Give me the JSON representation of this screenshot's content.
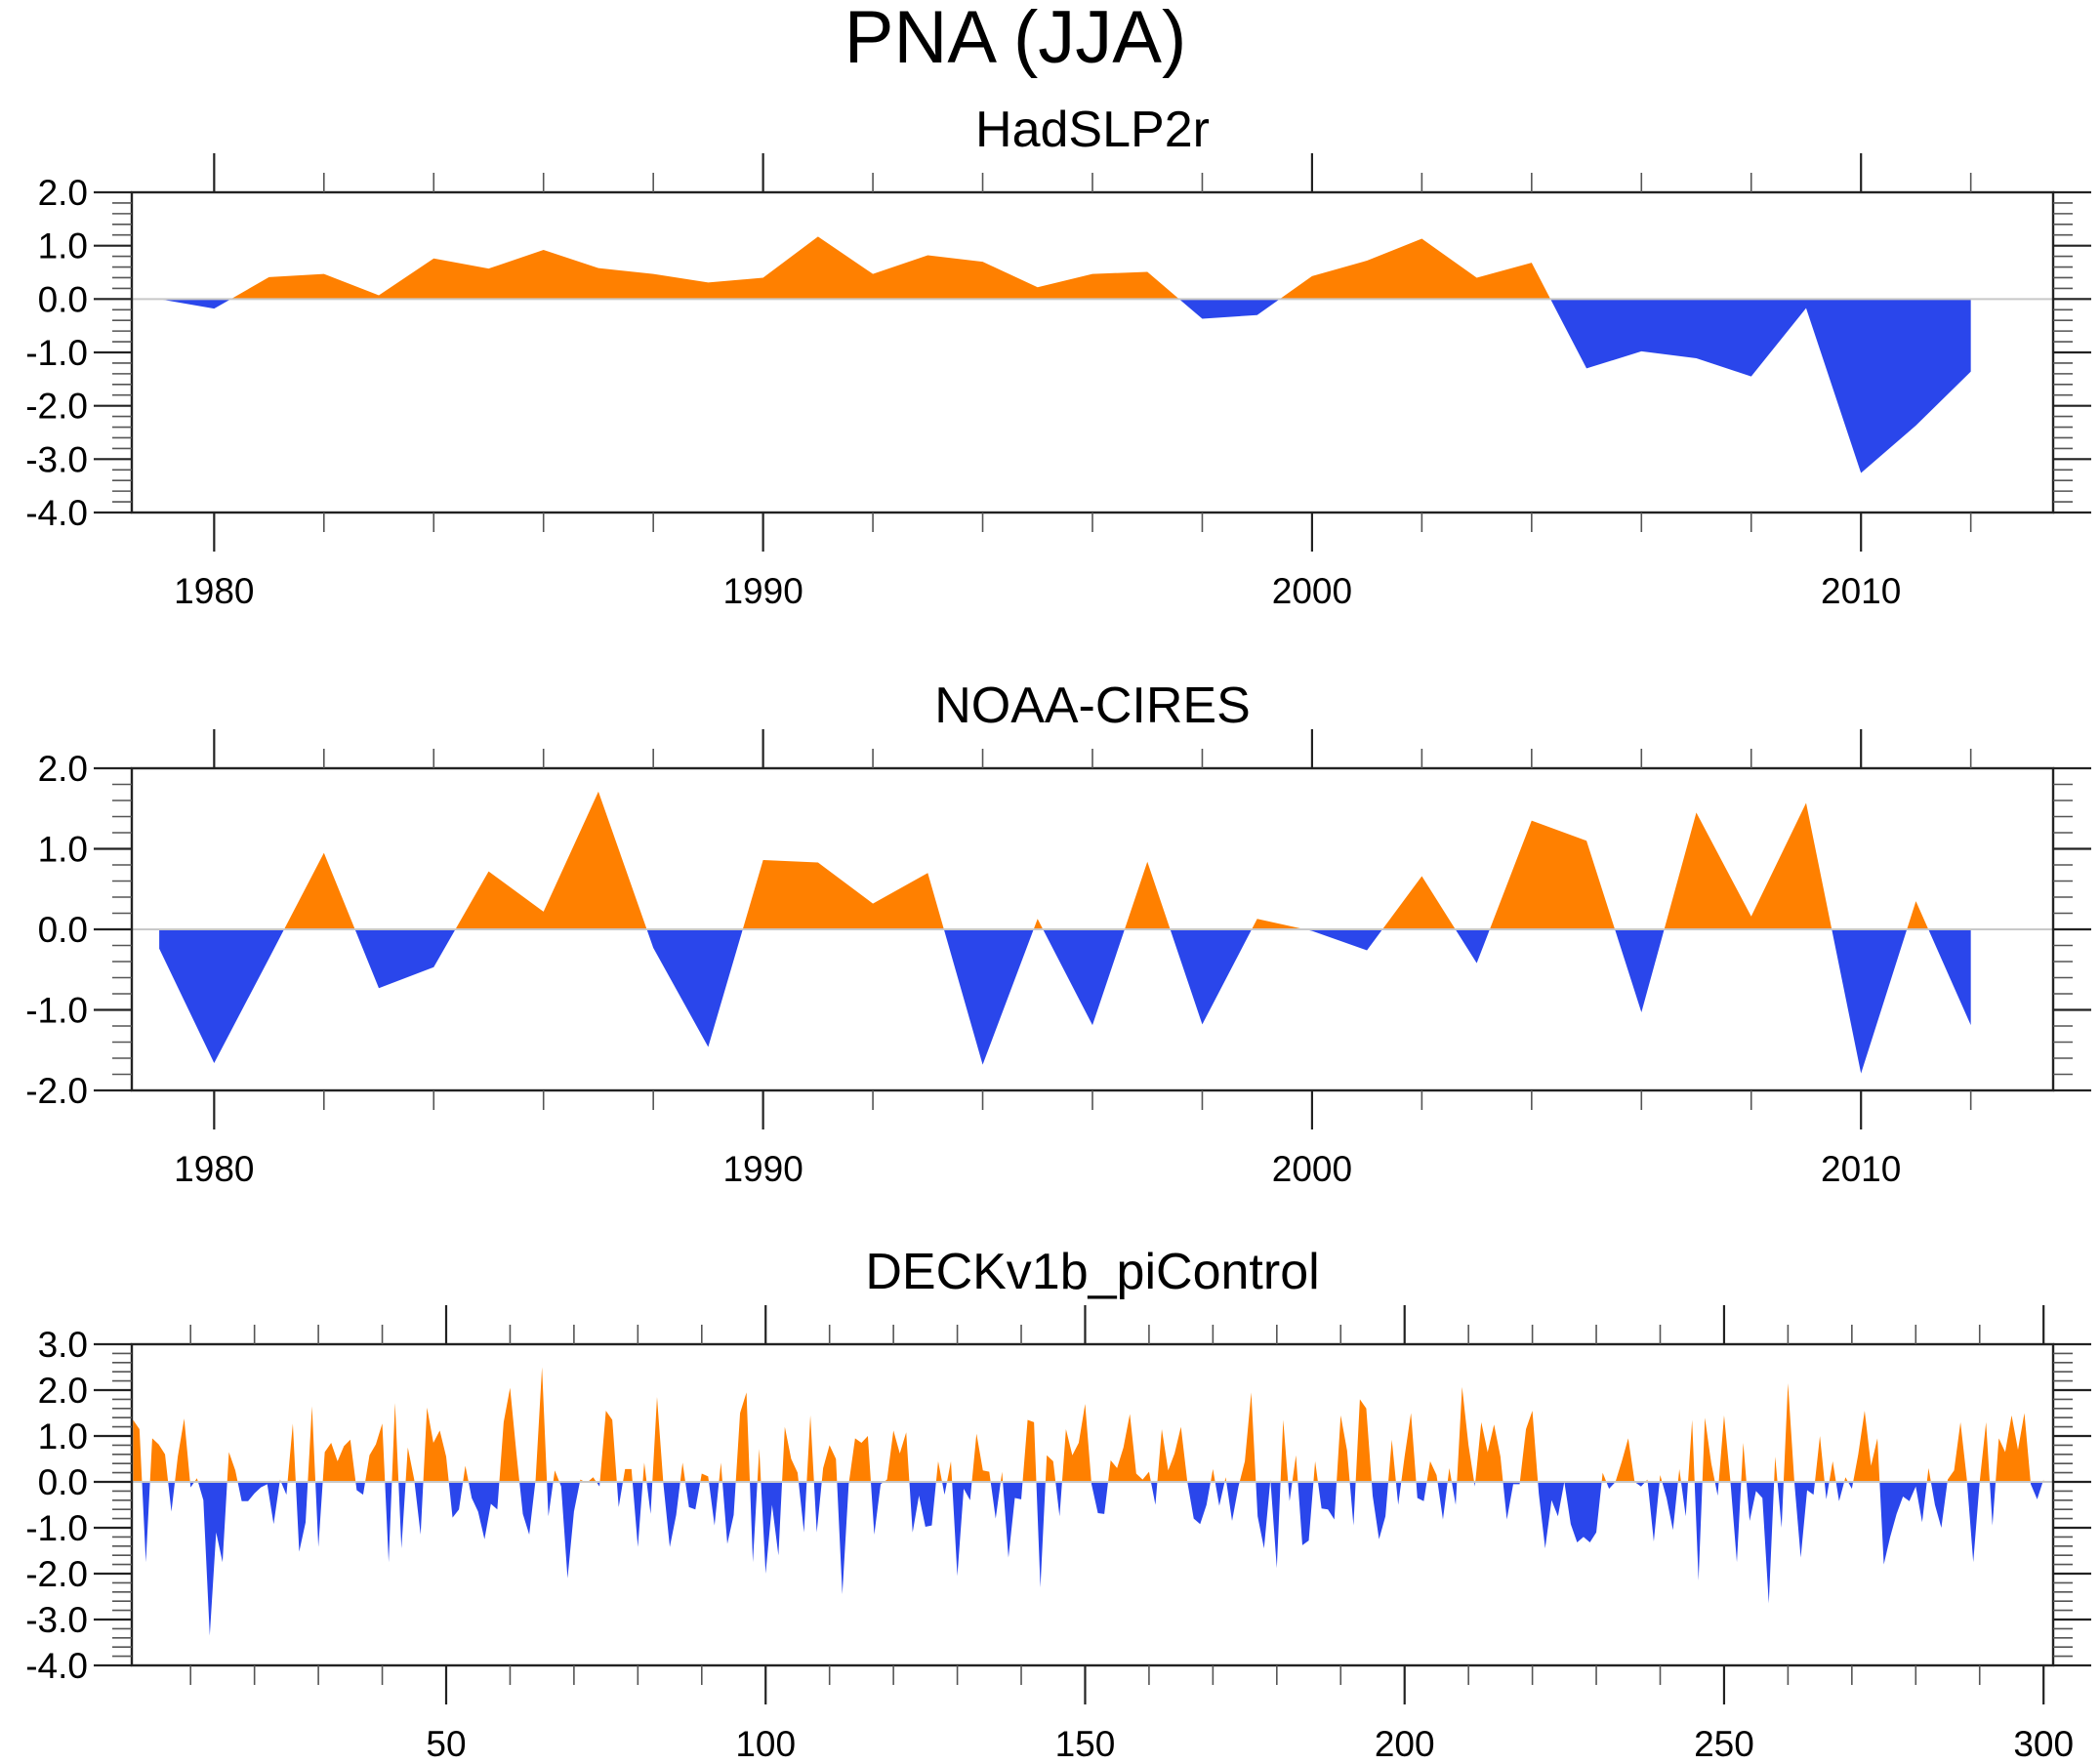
{
  "chart_data": {
    "title": "PNA (JJA)",
    "panels": [
      {
        "type": "area",
        "title": "HadSLP2r",
        "xlabel": "",
        "ylabel": "",
        "xlim": [
          1978.5,
          2013.5
        ],
        "ylim": [
          -4.0,
          2.0
        ],
        "x_major_ticks": [
          1980,
          1990,
          2000,
          2010
        ],
        "x_minor_step": 2,
        "x_tick_labels": [
          "1980",
          "1990",
          "2000",
          "2010"
        ],
        "y_major_ticks": [
          2.0,
          1.0,
          0.0,
          -1.0,
          -2.0,
          -3.0,
          -4.0
        ],
        "y_tick_labels": [
          "2.0",
          "1.0",
          "0.0",
          "-1.0",
          "-2.0",
          "-3.0",
          "-4.0"
        ],
        "y_minor_step": 0.2,
        "grid": false,
        "positive_color": "#ff8000",
        "negative_color": "#2a46eb",
        "x_start": 1979,
        "x_step": 1,
        "values": [
          0.0,
          -0.18,
          0.41,
          0.47,
          0.07,
          0.76,
          0.57,
          0.92,
          0.58,
          0.47,
          0.31,
          0.4,
          1.17,
          0.47,
          0.82,
          0.7,
          0.22,
          0.47,
          0.51,
          -0.37,
          -0.3,
          0.43,
          0.72,
          1.13,
          0.4,
          0.68,
          -1.3,
          -0.98,
          -1.11,
          -1.45,
          -0.17,
          -3.26,
          -2.37,
          -1.36
        ]
      },
      {
        "type": "area",
        "title": "NOAA-CIRES",
        "xlabel": "",
        "ylabel": "",
        "xlim": [
          1978.5,
          2013.5
        ],
        "ylim": [
          -2.0,
          2.0
        ],
        "x_major_ticks": [
          1980,
          1990,
          2000,
          2010
        ],
        "x_minor_step": 2,
        "x_tick_labels": [
          "1980",
          "1990",
          "2000",
          "2010"
        ],
        "y_major_ticks": [
          2.0,
          1.0,
          0.0,
          -1.0,
          -2.0
        ],
        "y_tick_labels": [
          "2.0",
          "1.0",
          "0.0",
          "-1.0",
          "-2.0"
        ],
        "y_minor_step": 0.2,
        "grid": false,
        "positive_color": "#ff8000",
        "negative_color": "#2a46eb",
        "x_start": 1979,
        "x_step": 1,
        "values": [
          -0.24,
          -1.66,
          -0.36,
          0.95,
          -0.73,
          -0.47,
          0.72,
          0.22,
          1.71,
          -0.23,
          -1.46,
          0.86,
          0.83,
          0.32,
          0.7,
          -1.68,
          0.13,
          -1.19,
          0.84,
          -1.18,
          0.13,
          -0.02,
          -0.26,
          0.66,
          -0.42,
          1.35,
          1.1,
          -1.03,
          1.45,
          0.16,
          1.57,
          -1.79,
          0.35,
          -1.19
        ]
      },
      {
        "type": "area",
        "title": "DECKv1b_piControl",
        "xlabel": "",
        "ylabel": "",
        "xlim": [
          0.8,
          301.5
        ],
        "ylim": [
          -4.0,
          3.0
        ],
        "x_major_ticks": [
          50,
          100,
          150,
          200,
          250,
          300
        ],
        "x_minor_step": 10,
        "x_tick_labels": [
          "50",
          "100",
          "150",
          "200",
          "250",
          "300"
        ],
        "y_major_ticks": [
          3.0,
          2.0,
          1.0,
          0.0,
          -1.0,
          -2.0,
          -3.0,
          -4.0
        ],
        "y_tick_labels": [
          "3.0",
          "2.0",
          "1.0",
          "0.0",
          "-1.0",
          "-2.0",
          "-3.0",
          "-4.0"
        ],
        "y_minor_step": 0.2,
        "grid": false,
        "positive_color": "#ff8000",
        "negative_color": "#2a46eb",
        "x_start": 1,
        "x_step": 1,
        "values": [
          1.35,
          1.15,
          -1.75,
          0.95,
          0.82,
          0.6,
          -0.65,
          0.55,
          1.38,
          -0.12,
          0.08,
          -0.4,
          -3.35,
          -1.1,
          -1.75,
          0.65,
          0.25,
          -0.42,
          -0.42,
          -0.25,
          -0.12,
          -0.05,
          -0.92,
          0.05,
          -0.28,
          1.27,
          -1.52,
          -0.88,
          1.65,
          -1.42,
          0.65,
          0.85,
          0.45,
          0.78,
          0.92,
          -0.18,
          -0.28,
          0.58,
          0.82,
          1.27,
          -1.75,
          1.72,
          -1.45,
          0.75,
          0.05,
          -1.15,
          1.62,
          0.85,
          1.12,
          0.55,
          -0.78,
          -0.6,
          0.35,
          -0.35,
          -0.65,
          -1.25,
          -0.48,
          -0.6,
          1.3,
          2.05,
          0.62,
          -0.7,
          -1.15,
          0.05,
          2.5,
          -0.75,
          0.25,
          -0.1,
          -2.1,
          -0.65,
          0.05,
          -0.02,
          0.1,
          -0.1,
          1.55,
          1.35,
          -0.55,
          0.28,
          0.28,
          -1.42,
          0.42,
          -0.7,
          1.85,
          -0.05,
          -1.42,
          -0.72,
          0.42,
          -0.55,
          -0.6,
          0.18,
          0.12,
          -0.95,
          0.42,
          -1.35,
          -0.72,
          1.5,
          1.95,
          -1.75,
          0.72,
          -2.0,
          -0.5,
          -1.6,
          1.2,
          0.5,
          0.2,
          -1.1,
          1.45,
          -1.1,
          0.3,
          0.8,
          0.5,
          -2.45,
          -0.05,
          0.95,
          0.85,
          1.0,
          -1.15,
          -0.05,
          0.05,
          1.12,
          0.62,
          1.08,
          -1.1,
          -0.3,
          -0.98,
          -0.95,
          0.45,
          -0.28,
          0.45,
          -2.05,
          -0.15,
          -0.4,
          1.05,
          0.25,
          0.22,
          -0.8,
          0.22,
          -1.65,
          -0.35,
          -0.38,
          1.35,
          1.3,
          -2.3,
          0.58,
          0.45,
          -0.75,
          1.15,
          0.58,
          0.85,
          1.7,
          -0.05,
          -0.68,
          -0.7,
          0.47,
          0.3,
          0.75,
          1.48,
          0.18,
          0.05,
          0.22,
          -0.5,
          1.15,
          0.25,
          0.62,
          1.2,
          0.0,
          -0.8,
          -0.92,
          -0.5,
          0.28,
          -0.52,
          0.1,
          -0.85,
          -0.1,
          0.45,
          1.95,
          -0.75,
          -1.45,
          0.05,
          -1.88,
          1.35,
          -0.42,
          0.58,
          -1.38,
          -1.28,
          0.45,
          -0.58,
          -0.6,
          -0.82,
          1.45,
          0.68,
          -0.95,
          1.8,
          1.6,
          -0.3,
          -1.25,
          -0.75,
          0.92,
          -0.5,
          0.55,
          1.5,
          -0.35,
          -0.42,
          0.45,
          0.15,
          -0.82,
          0.3,
          -0.5,
          2.07,
          0.8,
          -0.1,
          1.3,
          0.65,
          1.25,
          0.55,
          -0.82,
          -0.05,
          -0.05,
          1.15,
          1.55,
          -0.25,
          -1.45,
          -0.4,
          -0.75,
          0.0,
          -0.92,
          -1.32,
          -1.2,
          -1.32,
          -1.1,
          0.2,
          -0.15,
          0.0,
          0.45,
          0.95,
          0.0,
          -0.1,
          0.05,
          -1.3,
          0.15,
          -0.35,
          -1.05,
          0.28,
          -0.75,
          1.35,
          -2.15,
          1.4,
          0.4,
          -0.3,
          1.45,
          0.0,
          -1.75,
          0.85,
          -0.85,
          -0.2,
          -0.35,
          -2.65,
          0.55,
          -1.0,
          2.15,
          0.0,
          -1.65,
          -0.18,
          -0.28,
          1.0,
          -0.38,
          0.45,
          -0.42,
          0.1,
          -0.15,
          0.6,
          1.55,
          0.35,
          0.95,
          -1.8,
          -1.2,
          -0.7,
          -0.32,
          -0.42,
          -0.1,
          -0.88,
          0.3,
          -0.5,
          -1.0,
          0.05,
          0.25,
          1.3,
          0.05,
          -1.75,
          0.0,
          1.3,
          -0.95,
          0.95,
          0.65,
          1.45,
          0.7,
          1.5,
          -0.05,
          -0.38,
          0.05
        ]
      }
    ]
  }
}
